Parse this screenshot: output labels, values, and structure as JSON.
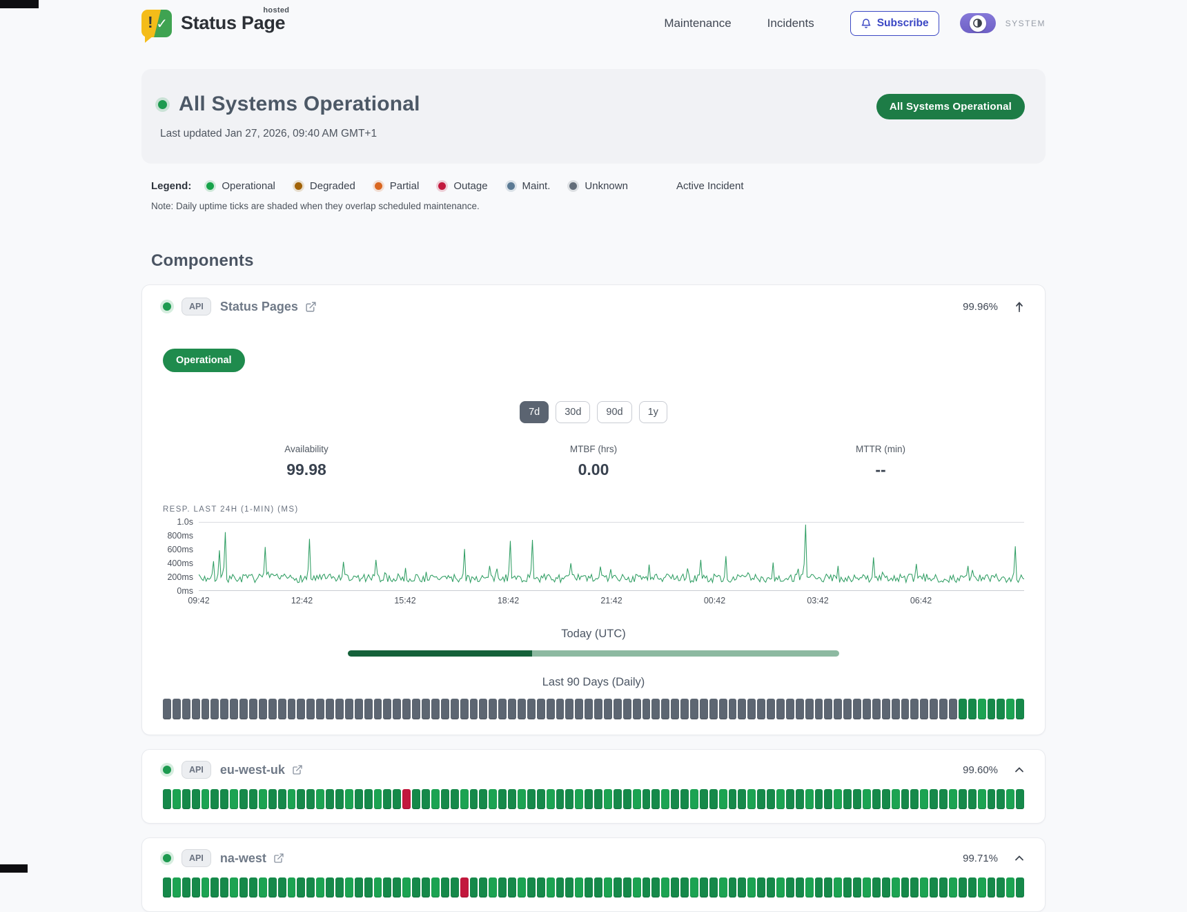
{
  "header": {
    "brand": {
      "name": "Status Page",
      "superscript": "hosted"
    },
    "nav": [
      {
        "label": "Maintenance"
      },
      {
        "label": "Incidents"
      }
    ],
    "subscribe_label": "Subscribe",
    "theme_label": "SYSTEM"
  },
  "hero": {
    "title": "All Systems Operational",
    "last_updated": "Last updated Jan 27, 2026, 09:40 AM GMT+1",
    "badge": "All Systems Operational"
  },
  "legend": {
    "label": "Legend:",
    "items": [
      {
        "label": "Operational",
        "color": "#16a34a"
      },
      {
        "label": "Degraded",
        "color": "#a16207"
      },
      {
        "label": "Partial",
        "color": "#d9661f"
      },
      {
        "label": "Outage",
        "color": "#c2183d"
      },
      {
        "label": "Maint.",
        "color": "#5b7a94"
      },
      {
        "label": "Unknown",
        "color": "#636d79"
      }
    ],
    "active_incident_label": "Active Incident",
    "note": "Note: Daily uptime ticks are shaded when they overlap scheduled maintenance."
  },
  "colors": {
    "operational": "#16894a",
    "operational_alt": "#1ca352",
    "unknown": "#5d6672",
    "outage": "#c2183d",
    "partial": "#d9661f",
    "today_fill": "#15613a",
    "today_rest": "#8db9a1"
  },
  "components": {
    "heading": "Components",
    "expanded": {
      "tag": "API",
      "name": "Status Pages",
      "uptime": "99.96%",
      "status_badge": "Operational",
      "ranges": [
        "7d",
        "30d",
        "90d",
        "1y"
      ],
      "active_range": "7d",
      "stats": [
        {
          "label": "Availability",
          "value": "99.98"
        },
        {
          "label": "MTBF (hrs)",
          "value": "0.00"
        },
        {
          "label": "MTTR (min)",
          "value": "--"
        }
      ],
      "today_label": "Today (UTC)",
      "today_progress": 0.375,
      "history_label": "Last 90 Days (Daily)",
      "history": [
        {
          "status": "unknown",
          "count": 83
        },
        {
          "status": "operational",
          "count": 7
        }
      ]
    },
    "collapsed": [
      {
        "tag": "API",
        "name": "eu-west-uk",
        "uptime": "99.60%",
        "history": [
          {
            "status": "operational",
            "count": 25
          },
          {
            "status": "outage",
            "count": 1
          },
          {
            "status": "operational",
            "count": 64
          }
        ]
      },
      {
        "tag": "API",
        "name": "na-west",
        "uptime": "99.71%",
        "history": [
          {
            "status": "operational",
            "count": 31
          },
          {
            "status": "outage",
            "count": 1
          },
          {
            "status": "operational",
            "count": 58
          }
        ]
      }
    ]
  },
  "chart_data": {
    "type": "line",
    "title": "RESP. LAST 24H (1-MIN) (MS)",
    "x_ticks": [
      "09:42",
      "12:42",
      "15:42",
      "18:42",
      "21:42",
      "00:42",
      "03:42",
      "06:42"
    ],
    "y_ticks": [
      "1.0s",
      "800ms",
      "600ms",
      "400ms",
      "200ms",
      "0ms"
    ],
    "ylim_ms": [
      0,
      1000
    ],
    "line_color": "#2e9d62",
    "grid": "top-and-bottom-only",
    "baseline_range_ms": [
      115,
      255
    ],
    "spikes": [
      {
        "t": 0.018,
        "ms": 430
      },
      {
        "t": 0.025,
        "ms": 590
      },
      {
        "t": 0.033,
        "ms": 860
      },
      {
        "t": 0.08,
        "ms": 640
      },
      {
        "t": 0.135,
        "ms": 760
      },
      {
        "t": 0.175,
        "ms": 420
      },
      {
        "t": 0.215,
        "ms": 450
      },
      {
        "t": 0.25,
        "ms": 330
      },
      {
        "t": 0.322,
        "ms": 610
      },
      {
        "t": 0.352,
        "ms": 360
      },
      {
        "t": 0.377,
        "ms": 730
      },
      {
        "t": 0.405,
        "ms": 745
      },
      {
        "t": 0.45,
        "ms": 400
      },
      {
        "t": 0.487,
        "ms": 350
      },
      {
        "t": 0.545,
        "ms": 380
      },
      {
        "t": 0.608,
        "ms": 450
      },
      {
        "t": 0.638,
        "ms": 505
      },
      {
        "t": 0.695,
        "ms": 410
      },
      {
        "t": 0.735,
        "ms": 970
      },
      {
        "t": 0.775,
        "ms": 360
      },
      {
        "t": 0.818,
        "ms": 485
      },
      {
        "t": 0.87,
        "ms": 390
      },
      {
        "t": 0.932,
        "ms": 360
      },
      {
        "t": 0.99,
        "ms": 650
      }
    ]
  }
}
